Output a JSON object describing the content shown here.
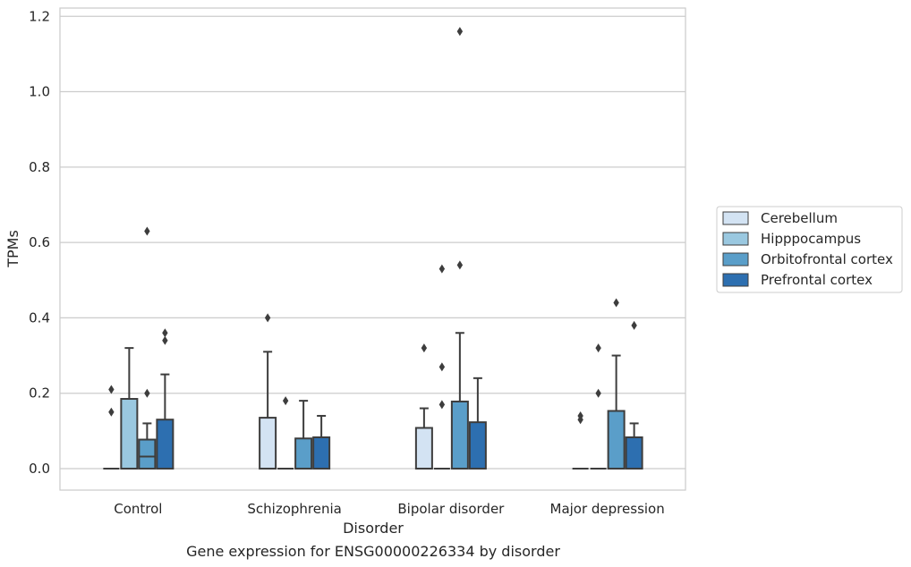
{
  "chart_data": {
    "type": "box",
    "title": "",
    "caption": "Gene expression for ENSG00000226334 by disorder",
    "xlabel": "Disorder",
    "ylabel": "TPMs",
    "ylim": [
      -0.057,
      1.222
    ],
    "yticks": [
      "0.0",
      "0.2",
      "0.4",
      "0.6",
      "0.8",
      "1.0",
      "1.2"
    ],
    "ytick_values": [
      0.0,
      0.2,
      0.4,
      0.6,
      0.8,
      1.0,
      1.2
    ],
    "grid": "horizontal",
    "legend_position": "right",
    "categories": [
      "Control",
      "Schizophrenia",
      "Bipolar disorder",
      "Major depression"
    ],
    "series": [
      {
        "name": "Cerebellum",
        "color": "#d3e3f3",
        "boxes": [
          {
            "whislo": 0.0,
            "q1": 0.0,
            "med": 0.0,
            "q3": 0.0,
            "whishi": 0.0,
            "fliers": [
              0.21,
              0.15
            ]
          },
          {
            "whislo": 0.0,
            "q1": 0.0,
            "med": 0.0,
            "q3": 0.135,
            "whishi": 0.31,
            "fliers": [
              0.4
            ]
          },
          {
            "whislo": 0.0,
            "q1": 0.0,
            "med": 0.0,
            "q3": 0.108,
            "whishi": 0.16,
            "fliers": [
              0.32
            ]
          },
          {
            "whislo": 0.0,
            "q1": 0.0,
            "med": 0.0,
            "q3": 0.0,
            "whishi": 0.0,
            "fliers": [
              0.14,
              0.13
            ]
          }
        ]
      },
      {
        "name": "Hipppocampus",
        "color": "#9ac8e0",
        "boxes": [
          {
            "whislo": 0.0,
            "q1": 0.0,
            "med": 0.0,
            "q3": 0.185,
            "whishi": 0.32,
            "fliers": []
          },
          {
            "whislo": 0.0,
            "q1": 0.0,
            "med": 0.0,
            "q3": 0.0,
            "whishi": 0.0,
            "fliers": [
              0.18
            ]
          },
          {
            "whislo": 0.0,
            "q1": 0.0,
            "med": 0.0,
            "q3": 0.0,
            "whishi": 0.0,
            "fliers": [
              0.53,
              0.27,
              0.17
            ]
          },
          {
            "whislo": 0.0,
            "q1": 0.0,
            "med": 0.0,
            "q3": 0.0,
            "whishi": 0.0,
            "fliers": [
              0.32,
              0.2
            ]
          }
        ]
      },
      {
        "name": "Orbitofrontal cortex",
        "color": "#5a9ec9",
        "boxes": [
          {
            "whislo": 0.0,
            "q1": 0.0,
            "med": 0.032,
            "q3": 0.077,
            "whishi": 0.12,
            "fliers": [
              0.63,
              0.2
            ]
          },
          {
            "whislo": 0.0,
            "q1": 0.0,
            "med": 0.0,
            "q3": 0.08,
            "whishi": 0.18,
            "fliers": []
          },
          {
            "whislo": 0.0,
            "q1": 0.0,
            "med": 0.0,
            "q3": 0.178,
            "whishi": 0.36,
            "fliers": [
              1.16,
              0.54
            ]
          },
          {
            "whislo": 0.0,
            "q1": 0.0,
            "med": 0.0,
            "q3": 0.153,
            "whishi": 0.3,
            "fliers": [
              0.44
            ]
          }
        ]
      },
      {
        "name": "Prefrontal cortex",
        "color": "#2d6fb0",
        "boxes": [
          {
            "whislo": 0.0,
            "q1": 0.0,
            "med": 0.0,
            "q3": 0.13,
            "whishi": 0.25,
            "fliers": [
              0.36,
              0.34
            ]
          },
          {
            "whislo": 0.0,
            "q1": 0.0,
            "med": 0.0,
            "q3": 0.083,
            "whishi": 0.14,
            "fliers": []
          },
          {
            "whislo": 0.0,
            "q1": 0.0,
            "med": 0.0,
            "q3": 0.123,
            "whishi": 0.24,
            "fliers": []
          },
          {
            "whislo": 0.0,
            "q1": 0.0,
            "med": 0.0,
            "q3": 0.083,
            "whishi": 0.12,
            "fliers": [
              0.38
            ]
          }
        ]
      }
    ]
  }
}
